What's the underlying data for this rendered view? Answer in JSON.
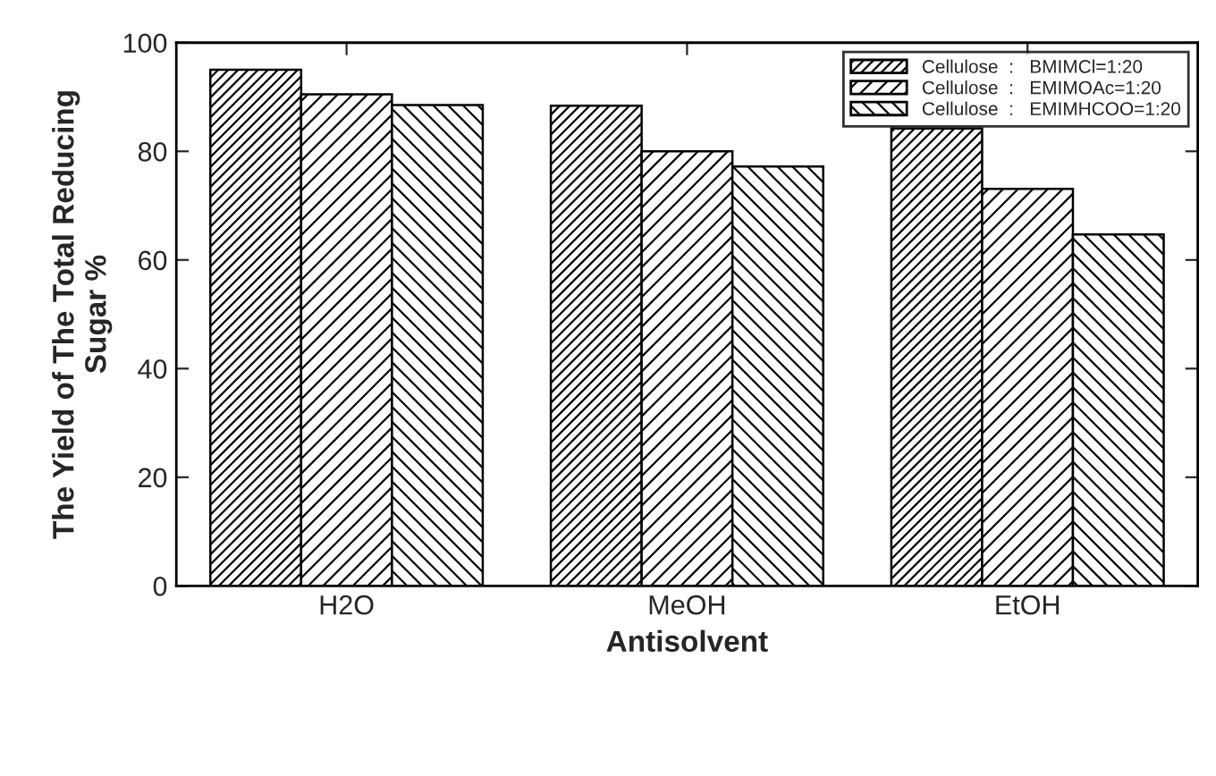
{
  "chart_data": {
    "type": "bar",
    "xlabel": "Antisolvent",
    "ylabel": "The Yield of The Total Reducing\nSugar %",
    "categories": [
      "H2O",
      "MeOH",
      "EtOH"
    ],
    "series": [
      {
        "name": "Cellulose  :   BMIMCl=1:20",
        "color": "#000000",
        "values": [
          95,
          88.4,
          84.2
        ]
      },
      {
        "name": "Cellulose  :   EMIMOAc=1:20",
        "color": "#000000",
        "values": [
          90.5,
          80,
          73.1
        ]
      },
      {
        "name": "Cellulose  :   EMIMHCOO=1:20",
        "color": "#000000",
        "values": [
          88.5,
          77.2,
          64.7
        ]
      }
    ],
    "ylim": [
      0,
      100
    ],
    "yticks": [
      0,
      20,
      40,
      60,
      80,
      100
    ],
    "grid": false,
    "legend": "top right"
  }
}
